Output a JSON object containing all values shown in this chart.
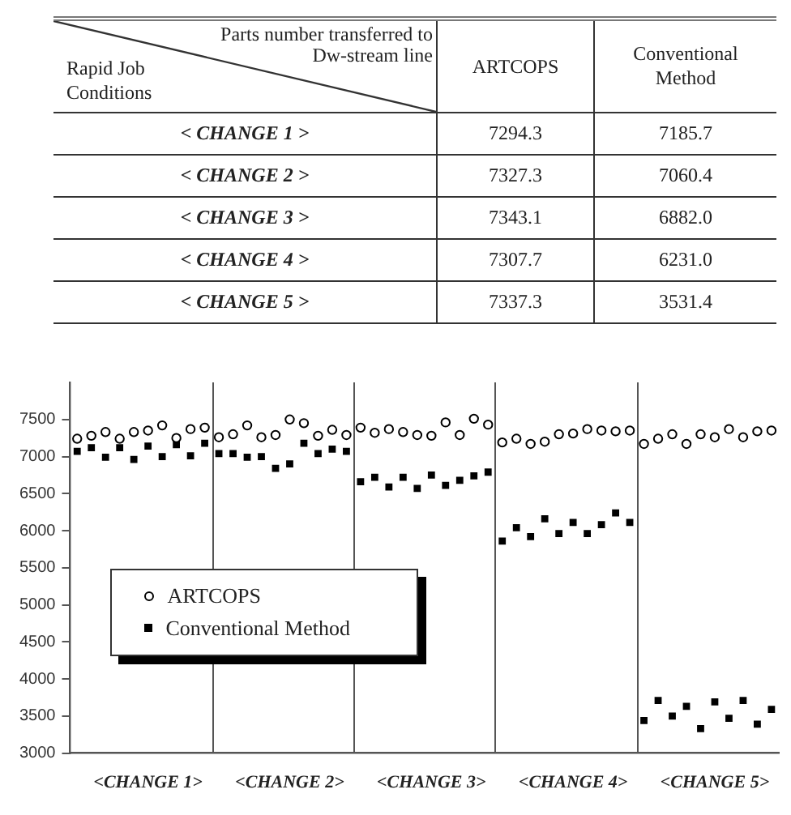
{
  "chart_data": [
    {
      "type": "other",
      "xlabel": "Parts number transferred to Dw-stream line",
      "ylabel": "Rapid Job Conditions",
      "categories": [
        "< CHANGE 1 >",
        "< CHANGE 2 >",
        "< CHANGE 3 >",
        "< CHANGE 4 >",
        "< CHANGE 5 >"
      ],
      "series": [
        {
          "name": "ARTCOPS",
          "values": [
            7294.3,
            7327.3,
            7343.1,
            7307.7,
            7337.3
          ],
          "value_labels": [
            "7294.3",
            "7327.3",
            "7343.1",
            "7307.7",
            "7337.3"
          ]
        },
        {
          "name": "Conventional Method",
          "values": [
            7185.7,
            7060.4,
            6882.0,
            6231.0,
            3531.4
          ],
          "value_labels": [
            "7185.7",
            "7060.4",
            "6882.0",
            "6231.0",
            "3531.4"
          ]
        }
      ]
    },
    {
      "type": "scatter",
      "ylim": [
        3000,
        8000
      ],
      "categories": [
        null,
        null,
        null,
        null,
        null,
        "<CHANGE 1>",
        null,
        null,
        null,
        null,
        null,
        null,
        null,
        null,
        null,
        "<CHANGE 2>",
        null,
        null,
        null,
        null,
        null,
        null,
        null,
        null,
        null,
        "<CHANGE 3>",
        null,
        null,
        null,
        null,
        null,
        null,
        null,
        null,
        null,
        "<CHANGE 4>",
        null,
        null,
        null,
        null,
        null,
        null,
        null,
        null,
        null,
        "<CHANGE 5>",
        null,
        null,
        null,
        null
      ],
      "yticks": [
        3000,
        3500,
        4000,
        4500,
        5000,
        5500,
        6000,
        6500,
        7000,
        7500
      ],
      "legend": "bottom left",
      "series": [
        {
          "name": "ARTCOPS",
          "color": "#000000",
          "marker": "circle",
          "values": [
            7240,
            7280,
            7330,
            7240,
            7330,
            7350,
            7420,
            7250,
            7370,
            7390,
            7260,
            7300,
            7420,
            7260,
            7290,
            7500,
            7450,
            7280,
            7360,
            7290,
            7390,
            7320,
            7370,
            7330,
            7290,
            7280,
            7460,
            7290,
            7510,
            7430,
            7190,
            7240,
            7170,
            7200,
            7300,
            7310,
            7370,
            7350,
            7340,
            7350,
            7170,
            7240,
            7300,
            7170,
            7300,
            7260,
            7370,
            7260,
            7340,
            7350
          ]
        },
        {
          "name": "Conventional Method",
          "color": "#000000",
          "marker": "square",
          "values": [
            7070,
            7120,
            6990,
            7120,
            6960,
            7140,
            7000,
            7160,
            7010,
            7180,
            7040,
            7040,
            6990,
            7000,
            6840,
            6900,
            7180,
            7040,
            7100,
            7070,
            6660,
            6720,
            6590,
            6720,
            6570,
            6750,
            6610,
            6680,
            6740,
            6790,
            5860,
            6040,
            5920,
            6160,
            5960,
            6110,
            5960,
            6080,
            6240,
            6110,
            3440,
            3710,
            3500,
            3630,
            3330,
            3690,
            3470,
            3710,
            3390,
            3590
          ]
        }
      ]
    }
  ]
}
